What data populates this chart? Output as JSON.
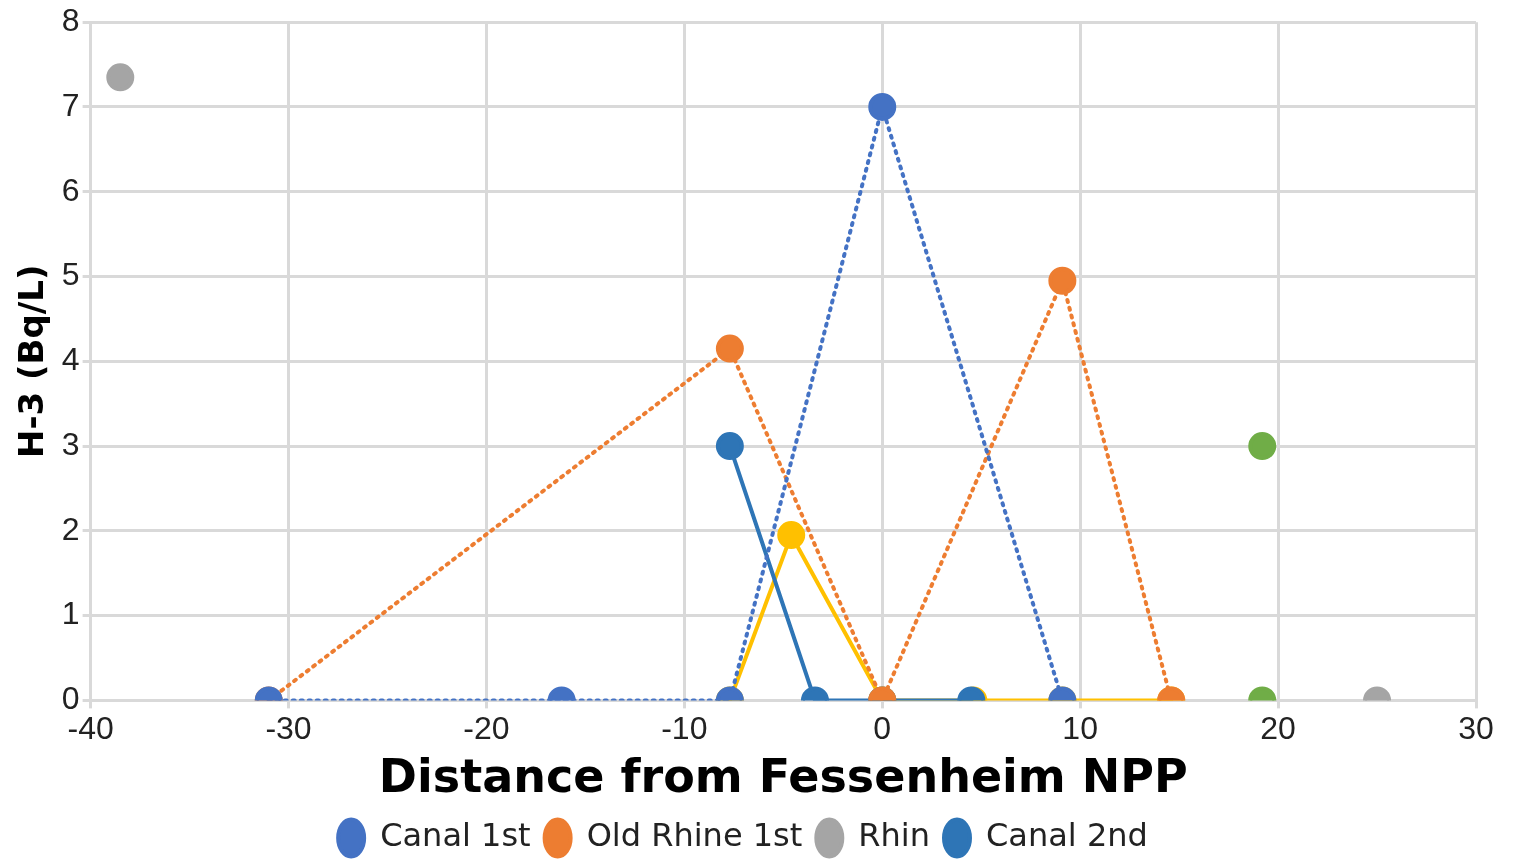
{
  "chart_data": {
    "type": "line",
    "xlabel": "Distance from Fessenheim NPP",
    "ylabel": "H-3 (Bq/L)",
    "xlim": [
      -40,
      30
    ],
    "xticks": [
      -40,
      -30,
      -20,
      -10,
      0,
      10,
      20,
      30
    ],
    "ylim": [
      0,
      8
    ],
    "yticks": [
      0,
      1,
      2,
      3,
      4,
      5,
      6,
      7,
      8
    ],
    "grid": true,
    "legend": "bottom",
    "marker": "circle",
    "series": [
      {
        "name": "Canal 1st",
        "line_style": "dotted",
        "color": "#4472c4",
        "x": [
          -31,
          -16.2,
          -7.7,
          0,
          9.1
        ],
        "values": [
          0,
          0,
          0,
          7,
          0
        ]
      },
      {
        "name": "Old Rhine 1st",
        "line_style": "dotted",
        "color": "#ed7d31",
        "x": [
          -31,
          -7.7,
          0,
          9.1,
          14.6
        ],
        "values": [
          0,
          4.15,
          0,
          4.95,
          0
        ]
      },
      {
        "name": "Rhin",
        "type": "scatter",
        "color": "#a5a5a5",
        "x": [
          -38.5,
          25
        ],
        "values": [
          7.35,
          0
        ]
      },
      {
        "name": "Canal 2nd",
        "line_style": "solid",
        "color": "#2e75b6",
        "x": [
          -7.7,
          -3.4,
          0,
          4.5
        ],
        "values": [
          3,
          0,
          0,
          0
        ]
      },
      {
        "line_style": "solid",
        "color": "#ffc000",
        "x": [
          -7.7,
          -4.6,
          0,
          4.6,
          9.1,
          14.6
        ],
        "values": [
          0,
          1.95,
          0,
          0,
          0,
          0
        ]
      },
      {
        "type": "scatter",
        "color": "#70ad47",
        "x": [
          19.2,
          19.2
        ],
        "values": [
          3,
          0
        ]
      }
    ]
  }
}
